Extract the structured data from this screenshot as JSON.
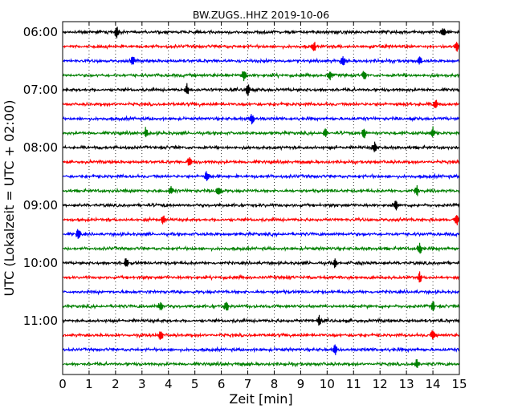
{
  "chart_data": {
    "type": "line",
    "title": "BW.ZUGS..HHZ 2019-10-06",
    "xlabel": "Zeit  [min]",
    "ylabel": "UTC (Lokalzeit = UTC + 02:00)",
    "xlim": [
      0,
      15
    ],
    "x_ticks": [
      "0",
      "1",
      "2",
      "3",
      "4",
      "5",
      "6",
      "7",
      "8",
      "9",
      "10",
      "11",
      "12",
      "13",
      "14",
      "15"
    ],
    "y_ticks": [
      "06:00",
      "07:00",
      "08:00",
      "09:00",
      "10:00",
      "11:00"
    ],
    "grid": "vertical dotted lines at each minute",
    "row_interval_min": 15,
    "first_trace_utc": "06:00",
    "series_colors": [
      "#000000",
      "#ff0000",
      "#0000ff",
      "#008000"
    ],
    "series": [
      {
        "start_utc": "06:00",
        "color": "#000000",
        "spikes_min": [
          2.05,
          14.4
        ]
      },
      {
        "start_utc": "06:15",
        "color": "#ff0000",
        "spikes_min": [
          9.5,
          14.9
        ]
      },
      {
        "start_utc": "06:30",
        "color": "#0000ff",
        "spikes_min": [
          2.65,
          10.6,
          13.5
        ]
      },
      {
        "start_utc": "06:45",
        "color": "#008000",
        "spikes_min": [
          6.85,
          10.1,
          11.4
        ]
      },
      {
        "start_utc": "07:00",
        "color": "#000000",
        "spikes_min": [
          4.7,
          7.0
        ]
      },
      {
        "start_utc": "07:15",
        "color": "#ff0000",
        "spikes_min": [
          14.1
        ]
      },
      {
        "start_utc": "07:30",
        "color": "#0000ff",
        "spikes_min": [
          7.15
        ]
      },
      {
        "start_utc": "07:45",
        "color": "#008000",
        "spikes_min": [
          3.15,
          9.95,
          11.4,
          14.0
        ]
      },
      {
        "start_utc": "08:00",
        "color": "#000000",
        "spikes_min": [
          11.8
        ]
      },
      {
        "start_utc": "08:15",
        "color": "#ff0000",
        "spikes_min": [
          4.8
        ]
      },
      {
        "start_utc": "08:30",
        "color": "#0000ff",
        "spikes_min": [
          5.45
        ]
      },
      {
        "start_utc": "08:45",
        "color": "#008000",
        "spikes_min": [
          4.1,
          5.9,
          13.4
        ]
      },
      {
        "start_utc": "09:00",
        "color": "#000000",
        "spikes_min": [
          12.6
        ]
      },
      {
        "start_utc": "09:15",
        "color": "#ff0000",
        "spikes_min": [
          3.8,
          14.9
        ]
      },
      {
        "start_utc": "09:30",
        "color": "#0000ff",
        "spikes_min": [
          0.6
        ]
      },
      {
        "start_utc": "09:45",
        "color": "#008000",
        "spikes_min": [
          13.5
        ]
      },
      {
        "start_utc": "10:00",
        "color": "#000000",
        "spikes_min": [
          2.4,
          10.3
        ]
      },
      {
        "start_utc": "10:15",
        "color": "#ff0000",
        "spikes_min": [
          13.5
        ]
      },
      {
        "start_utc": "10:30",
        "color": "#0000ff",
        "spikes_min": []
      },
      {
        "start_utc": "10:45",
        "color": "#008000",
        "spikes_min": [
          3.7,
          6.2,
          14.0
        ]
      },
      {
        "start_utc": "11:00",
        "color": "#000000",
        "spikes_min": [
          9.7
        ]
      },
      {
        "start_utc": "11:15",
        "color": "#ff0000",
        "spikes_min": [
          3.7,
          14.0
        ]
      },
      {
        "start_utc": "11:30",
        "color": "#0000ff",
        "spikes_min": [
          10.3
        ]
      },
      {
        "start_utc": "11:45",
        "color": "#008000",
        "spikes_min": [
          13.4
        ]
      }
    ]
  }
}
